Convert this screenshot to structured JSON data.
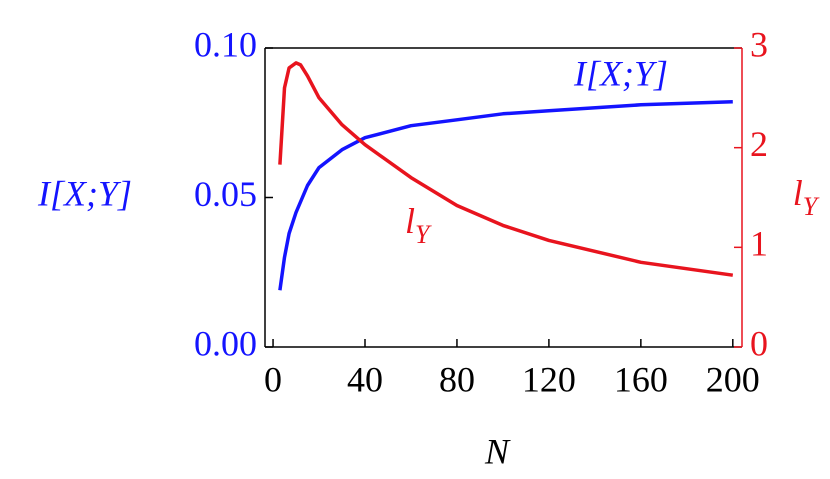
{
  "chart_data": {
    "type": "line",
    "xlabel": "N",
    "ylabel": "I[X;Y]",
    "y2label": {
      "base": "l",
      "sub": "Y"
    },
    "xlim": [
      -3.5,
      204
    ],
    "xticks": [
      0,
      40,
      80,
      120,
      160,
      200
    ],
    "ylim": [
      0,
      0.1
    ],
    "yticks": [
      {
        "value": 0,
        "label": "0.00"
      },
      {
        "value": 0.05,
        "label": "0.05"
      },
      {
        "value": 0.1,
        "label": "0.10"
      }
    ],
    "y2lim": [
      0,
      3
    ],
    "y2ticks": [
      0,
      1,
      2,
      3
    ],
    "y_color": "#1414ff",
    "y2_color": "#e8141e",
    "series": [
      {
        "name": "I[X;Y]",
        "color": "#1414ff",
        "x": [
          3,
          5,
          7,
          10,
          15,
          20,
          30,
          40,
          60,
          80,
          100,
          120,
          160,
          200
        ],
        "values": [
          0.019,
          0.03,
          0.038,
          0.045,
          0.054,
          0.06,
          0.066,
          0.07,
          0.074,
          0.076,
          0.078,
          0.079,
          0.081,
          0.082
        ]
      },
      {
        "name": "l",
        "name_sub": "Y",
        "color": "#e8141e",
        "axis": "y2",
        "x": [
          3,
          5,
          7,
          10,
          12,
          15,
          20,
          30,
          40,
          60,
          80,
          100,
          120,
          160,
          200
        ],
        "values": [
          1.83,
          2.6,
          2.8,
          2.85,
          2.83,
          2.72,
          2.5,
          2.23,
          2.03,
          1.7,
          1.42,
          1.22,
          1.07,
          0.85,
          0.72
        ]
      }
    ]
  }
}
